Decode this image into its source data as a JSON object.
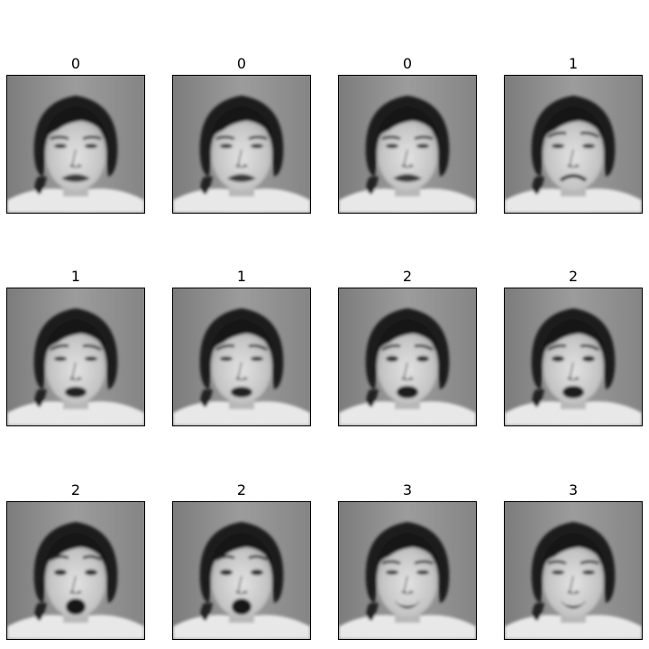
{
  "grid": {
    "rows": 3,
    "cols": 4
  },
  "panels": [
    {
      "label": "0",
      "expression": "frown-closed-mouth"
    },
    {
      "label": "0",
      "expression": "frown-closed-mouth"
    },
    {
      "label": "0",
      "expression": "frown-closed-mouth"
    },
    {
      "label": "1",
      "expression": "sad-downturned-mouth"
    },
    {
      "label": "1",
      "expression": "sad-open-mouth"
    },
    {
      "label": "1",
      "expression": "sad-open-mouth"
    },
    {
      "label": "2",
      "expression": "fearful-open-mouth"
    },
    {
      "label": "2",
      "expression": "fearful-open-mouth"
    },
    {
      "label": "2",
      "expression": "surprised-open-mouth"
    },
    {
      "label": "2",
      "expression": "surprised-open-mouth"
    },
    {
      "label": "3",
      "expression": "happy-smile"
    },
    {
      "label": "3",
      "expression": "happy-smile"
    }
  ],
  "colors": {
    "frame_border": "#000000",
    "background": "#ffffff"
  }
}
